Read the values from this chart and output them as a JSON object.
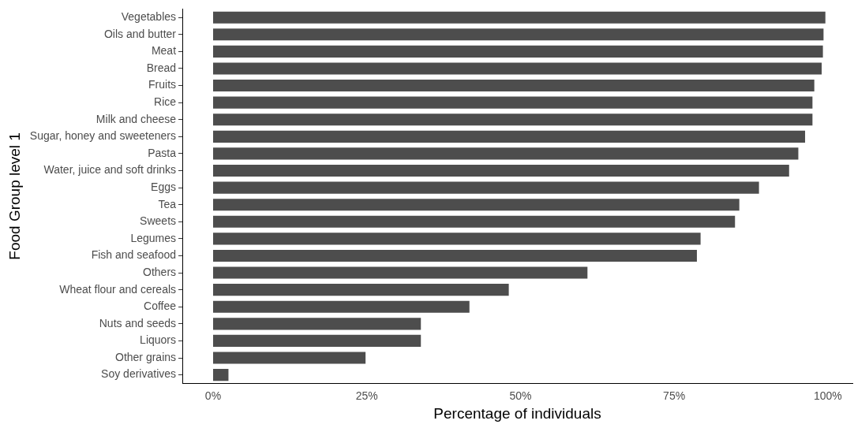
{
  "chart_data": {
    "type": "bar",
    "orientation": "horizontal",
    "xlabel": "Percentage of individuals",
    "ylabel": "Food Group level 1",
    "categories": [
      "Vegetables",
      "Oils and butter",
      "Meat",
      "Bread",
      "Fruits",
      "Rice",
      "Milk and cheese",
      "Sugar, honey and sweeteners",
      "Pasta",
      "Water, juice and soft drinks",
      "Eggs",
      "Tea",
      "Sweets",
      "Legumes",
      "Fish and seafood",
      "Others",
      "Wheat flour and cereals",
      "Coffee",
      "Nuts and seeds",
      "Liquors",
      "Other grains",
      "Soy derivatives"
    ],
    "values": [
      99.6,
      99.3,
      99.2,
      99,
      97.8,
      97.5,
      97.5,
      96.3,
      95.2,
      93.7,
      88.8,
      85.6,
      84.9,
      79.3,
      78.7,
      60.9,
      48.1,
      41.7,
      33.8,
      33.8,
      24.8,
      2.5
    ],
    "color": "#4d4d4d",
    "xlim": [
      -5,
      104
    ],
    "xticks": [
      {
        "value": 0,
        "label": "0%"
      },
      {
        "value": 25,
        "label": "25%"
      },
      {
        "value": 50,
        "label": "50%"
      },
      {
        "value": 75,
        "label": "75%"
      },
      {
        "value": 100,
        "label": "100%"
      }
    ],
    "grid": false,
    "legend": false
  }
}
